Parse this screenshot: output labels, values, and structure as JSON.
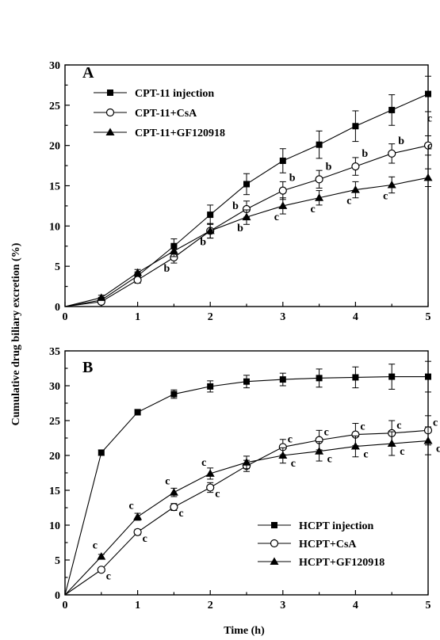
{
  "figure": {
    "ylabel": "Cumulative drug biliary excretion (%)",
    "xlabel": "Time (h)"
  },
  "chart_data": [
    {
      "type": "line",
      "panel": "A",
      "xlim": [
        0,
        5
      ],
      "ylim": [
        0,
        30
      ],
      "xticks": [
        0,
        1,
        2,
        3,
        4,
        5
      ],
      "yticks": [
        0,
        5,
        10,
        15,
        20,
        25,
        30
      ],
      "legend_position": "top-left",
      "grid": false,
      "x": [
        0,
        0.5,
        1,
        1.5,
        2,
        2.5,
        3,
        3.5,
        4,
        4.5,
        5
      ],
      "series": [
        {
          "name": "CPT-11 injection",
          "marker": "filled-square",
          "y": [
            0,
            0.8,
            3.8,
            7.5,
            11.4,
            15.2,
            18.1,
            20.1,
            22.4,
            24.4,
            26.4
          ],
          "err": [
            0,
            0.3,
            0.5,
            0.9,
            1.2,
            1.3,
            1.5,
            1.7,
            1.9,
            1.9,
            2.2
          ],
          "labels": [
            "",
            "",
            "",
            "",
            "",
            "",
            "",
            "",
            "",
            "",
            ""
          ]
        },
        {
          "name": "CPT-11+CsA",
          "marker": "open-circle",
          "y": [
            0,
            0.6,
            3.3,
            6.1,
            9.4,
            12.1,
            14.4,
            15.8,
            17.4,
            19.0,
            20.0
          ],
          "err": [
            0,
            0.3,
            0.4,
            0.7,
            0.9,
            1.0,
            1.1,
            1.1,
            1.1,
            1.2,
            1.2
          ],
          "labels": [
            "",
            "",
            "",
            "b",
            "b",
            "b",
            "b",
            "b",
            "b",
            "b",
            "c"
          ]
        },
        {
          "name": "CPT-11+GF120918",
          "marker": "filled-triangle",
          "y": [
            0,
            1.1,
            4.2,
            6.9,
            9.4,
            11.1,
            12.5,
            13.5,
            14.5,
            15.1,
            16.0
          ],
          "err": [
            0,
            0.3,
            0.4,
            0.7,
            0.9,
            0.9,
            1.0,
            0.9,
            1.0,
            1.0,
            1.1
          ],
          "labels": [
            "",
            "",
            "",
            "",
            "",
            "b",
            "c",
            "c",
            "c",
            "c",
            "c"
          ]
        }
      ]
    },
    {
      "type": "line",
      "panel": "B",
      "xlim": [
        0,
        5
      ],
      "ylim": [
        0,
        35
      ],
      "xticks": [
        0,
        1,
        2,
        3,
        4,
        5
      ],
      "yticks": [
        0,
        5,
        10,
        15,
        20,
        25,
        30,
        35
      ],
      "legend_position": "bottom-right",
      "grid": false,
      "x": [
        0,
        0.5,
        1,
        1.5,
        2,
        2.5,
        3,
        3.5,
        4,
        4.5,
        5
      ],
      "series": [
        {
          "name": "HCPT injection",
          "marker": "filled-square",
          "y": [
            0,
            20.4,
            26.2,
            28.8,
            29.9,
            30.6,
            30.9,
            31.1,
            31.2,
            31.3,
            31.3
          ],
          "err": [
            0,
            0.4,
            0.4,
            0.6,
            0.8,
            0.9,
            0.9,
            1.3,
            1.5,
            1.8,
            2.2
          ],
          "labels": [
            "",
            "",
            "",
            "",
            "",
            "",
            "",
            "",
            "",
            "",
            ""
          ]
        },
        {
          "name": "HCPT+CsA",
          "marker": "open-circle",
          "y": [
            0,
            3.6,
            9.0,
            12.6,
            15.4,
            18.5,
            21.2,
            22.2,
            23.0,
            23.2,
            23.6
          ],
          "err": [
            0,
            0.3,
            0.4,
            0.5,
            0.7,
            0.8,
            1.1,
            1.4,
            1.6,
            1.8,
            2.1
          ],
          "labels": [
            "",
            "c",
            "c",
            "c",
            "c",
            "",
            "c",
            "c",
            "c",
            "c",
            "c"
          ]
        },
        {
          "name": "HCPT+GF120918",
          "marker": "filled-triangle",
          "y": [
            0,
            5.5,
            11.2,
            14.7,
            17.4,
            19.0,
            20.0,
            20.6,
            21.3,
            21.7,
            22.1
          ],
          "err": [
            0,
            0.3,
            0.5,
            0.6,
            0.8,
            0.9,
            1.1,
            1.4,
            1.5,
            1.7,
            2.0
          ],
          "labels": [
            "",
            "c",
            "c",
            "c",
            "c",
            "",
            "c",
            "c",
            "c",
            "c",
            "c"
          ]
        }
      ]
    }
  ]
}
